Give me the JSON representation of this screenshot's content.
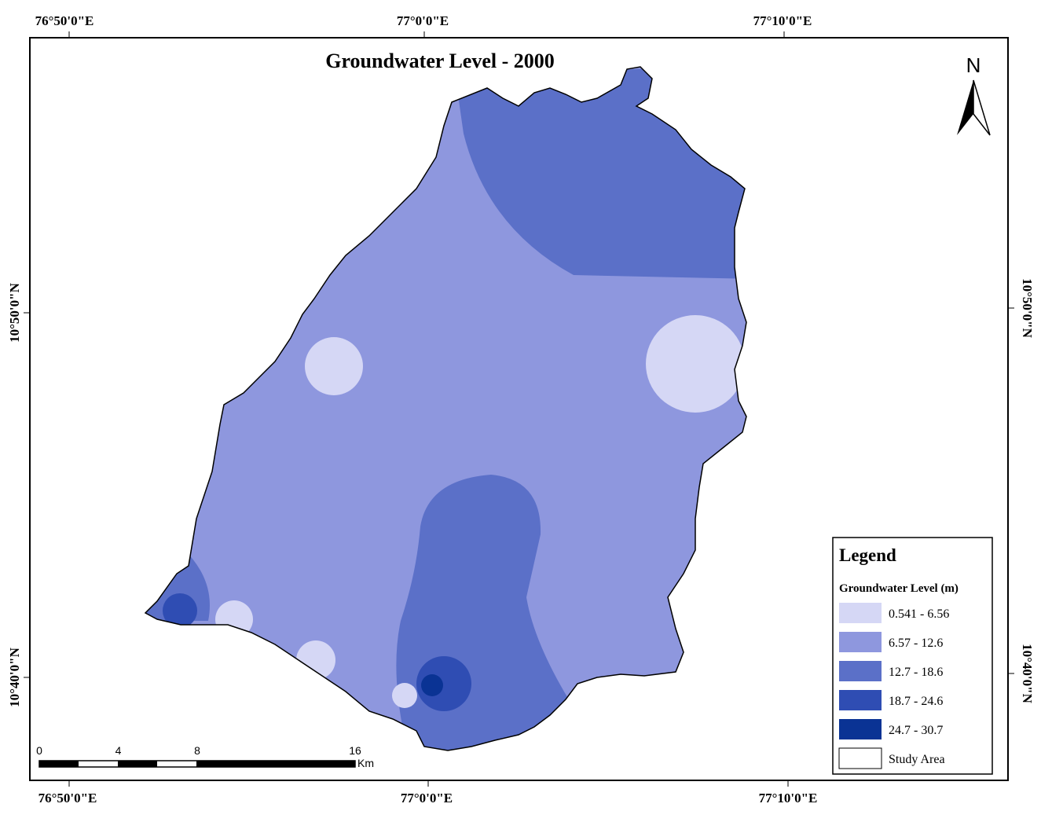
{
  "title": "Groundwater Level - 2000",
  "grid_labels": {
    "top": [
      "76°50'0\"E",
      "77°0'0\"E",
      "77°10'0\"E"
    ],
    "bottom": [
      "76°50'0\"E",
      "77°0'0\"E",
      "77°10'0\"E"
    ],
    "left": [
      "10°50'0\"N",
      "10°40'0\"N"
    ],
    "right": [
      "10°50'0\"N",
      "10°40'0\"N"
    ]
  },
  "north_arrow": "N",
  "scale_bar": {
    "ticks": [
      0,
      4,
      8,
      16
    ],
    "unit": "Km"
  },
  "legend": {
    "title": "Legend",
    "subtitle": "Groundwater Level (m)",
    "items": [
      {
        "label": "0.541 - 6.56",
        "color": "#d5d7f5"
      },
      {
        "label": "6.57 - 12.6",
        "color": "#8e97de"
      },
      {
        "label": "12.7 - 18.6",
        "color": "#5b70c8"
      },
      {
        "label": "18.7 - 24.6",
        "color": "#2f4db3"
      },
      {
        "label": "24.7 - 30.7",
        "color": "#0a3394"
      },
      {
        "label": "Study Area",
        "color": "#ffffff"
      }
    ]
  }
}
